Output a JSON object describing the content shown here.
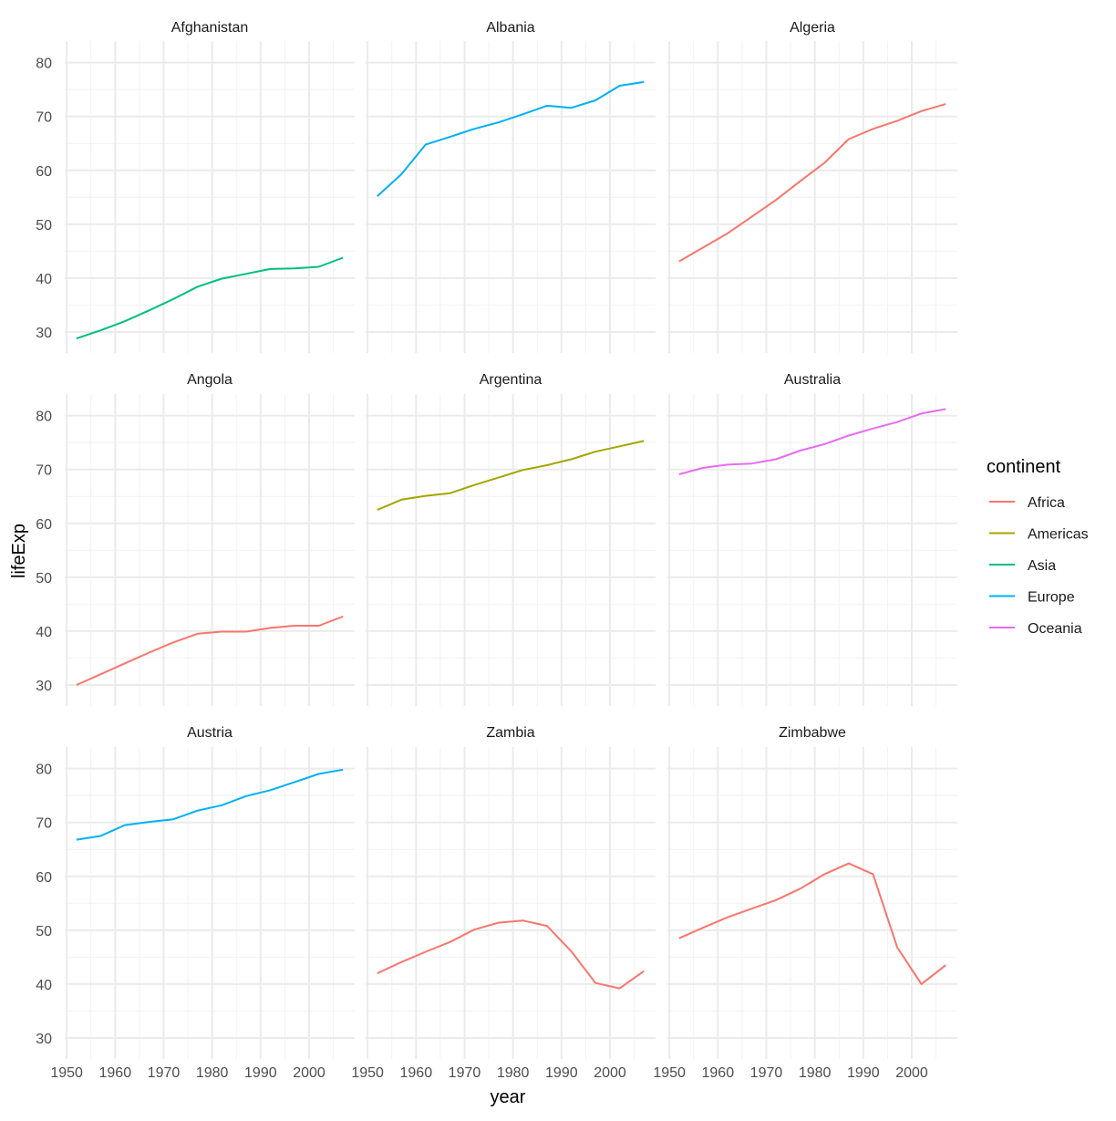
{
  "chart_data": {
    "type": "line",
    "xlabel": "year",
    "ylabel": "lifeExp",
    "xlim": [
      1949.6,
      2009.4
    ],
    "ylim": [
      26.1,
      84.0
    ],
    "x_ticks": [
      1950,
      1960,
      1970,
      1980,
      1990,
      2000
    ],
    "x_tick_labels": [
      "1950",
      "1960",
      "1970",
      "1980",
      "1990",
      "2000"
    ],
    "y_ticks": [
      30,
      40,
      50,
      60,
      70,
      80
    ],
    "y_tick_labels": [
      "30",
      "40",
      "50",
      "60",
      "70",
      "80"
    ],
    "grid": true,
    "facet_layout": "3x3",
    "legend": {
      "title": "continent",
      "position": "right",
      "entries": [
        {
          "name": "Africa",
          "color": "#F8766D"
        },
        {
          "name": "Americas",
          "color": "#A3A500"
        },
        {
          "name": "Asia",
          "color": "#00BF7D"
        },
        {
          "name": "Europe",
          "color": "#00B0F6"
        },
        {
          "name": "Oceania",
          "color": "#E76BF3"
        }
      ]
    },
    "x": [
      1952,
      1957,
      1962,
      1967,
      1972,
      1977,
      1982,
      1987,
      1992,
      1997,
      2002,
      2007
    ],
    "panels": [
      {
        "country": "Afghanistan",
        "continent": "Asia",
        "values": [
          28.8,
          30.3,
          32.0,
          34.0,
          36.1,
          38.4,
          39.9,
          40.8,
          41.7,
          41.8,
          42.1,
          43.8
        ]
      },
      {
        "country": "Albania",
        "continent": "Europe",
        "values": [
          55.2,
          59.3,
          64.8,
          66.2,
          67.7,
          68.9,
          70.4,
          72.0,
          71.6,
          73.0,
          75.7,
          76.4
        ]
      },
      {
        "country": "Algeria",
        "continent": "Africa",
        "values": [
          43.1,
          45.7,
          48.3,
          51.4,
          54.5,
          58.0,
          61.4,
          65.8,
          67.7,
          69.2,
          71.0,
          72.3
        ]
      },
      {
        "country": "Angola",
        "continent": "Africa",
        "values": [
          30.0,
          32.0,
          34.0,
          36.0,
          37.9,
          39.5,
          39.9,
          39.9,
          40.6,
          41.0,
          41.0,
          42.7
        ]
      },
      {
        "country": "Argentina",
        "continent": "Americas",
        "values": [
          62.5,
          64.4,
          65.1,
          65.6,
          67.1,
          68.5,
          69.9,
          70.8,
          71.9,
          73.3,
          74.3,
          75.3
        ]
      },
      {
        "country": "Australia",
        "continent": "Oceania",
        "values": [
          69.1,
          70.3,
          70.9,
          71.1,
          71.9,
          73.5,
          74.7,
          76.3,
          77.6,
          78.8,
          80.4,
          81.2
        ]
      },
      {
        "country": "Austria",
        "continent": "Europe",
        "values": [
          66.8,
          67.5,
          69.5,
          70.1,
          70.6,
          72.2,
          73.2,
          74.9,
          76.0,
          77.5,
          79.0,
          79.8
        ]
      },
      {
        "country": "Zambia",
        "continent": "Africa",
        "values": [
          42.0,
          44.1,
          46.0,
          47.8,
          50.1,
          51.4,
          51.8,
          50.8,
          46.1,
          40.2,
          39.2,
          42.4
        ]
      },
      {
        "country": "Zimbabwe",
        "continent": "Africa",
        "values": [
          48.5,
          50.5,
          52.4,
          54.0,
          55.6,
          57.7,
          60.4,
          62.4,
          60.4,
          46.8,
          40.0,
          43.5
        ]
      }
    ]
  }
}
